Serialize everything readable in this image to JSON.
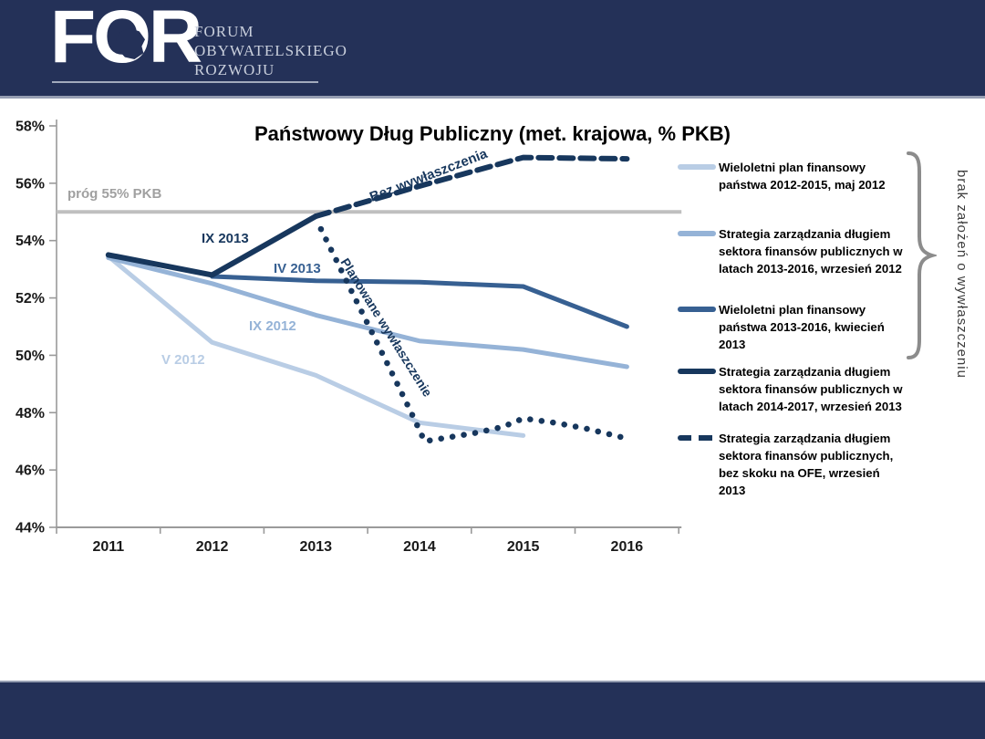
{
  "header": {
    "logo_text": "FOR",
    "org_lines": [
      "FORUM",
      "OBYWATELSKIEGO",
      "ROZWOJU"
    ],
    "brand_navy": "#243158"
  },
  "chart_data": {
    "type": "line",
    "title": "Państwowy Dług Publiczny (met. krajowa, % PKB)",
    "xlabel": "",
    "ylabel": "",
    "y_unit": "%",
    "ylim": [
      44,
      58
    ],
    "ytick_step": 2,
    "grid": false,
    "legend_position": "right",
    "x_categories": [
      2011,
      2012,
      2013,
      2014,
      2015,
      2016
    ],
    "threshold": {
      "value": 55,
      "label": "próg 55% PKB",
      "color": "#BFBFBF"
    },
    "series": [
      {
        "inline_label": "V 2012",
        "legend": "Wieloletni plan finansowy państwa 2012-2015, maj 2012",
        "color": "#B9CDE5",
        "style": "solid",
        "width": 5,
        "x": [
          2011,
          2012,
          2013,
          2014,
          2015
        ],
        "y": [
          53.45,
          50.45,
          49.3,
          47.65,
          47.2
        ]
      },
      {
        "inline_label": "IX 2012",
        "legend": "Strategia zarządzania długiem sektora finansów publicznych w latach 2013-2016, wrzesień 2012",
        "color": "#95B3D7",
        "style": "solid",
        "width": 5,
        "x": [
          2011,
          2012,
          2013,
          2014,
          2015,
          2016
        ],
        "y": [
          53.4,
          52.5,
          51.4,
          50.5,
          50.2,
          49.6
        ]
      },
      {
        "inline_label": "IV 2013",
        "legend": "Wieloletni plan finansowy państwa 2013-2016, kwiecień 2013",
        "color": "#376092",
        "style": "solid",
        "width": 5,
        "x": [
          2012,
          2013,
          2014,
          2015,
          2016
        ],
        "y": [
          52.75,
          52.6,
          52.55,
          52.4,
          51.0
        ]
      },
      {
        "inline_label": "IX 2013",
        "legend": "Strategia zarządzania długiem sektora finansów publicznych w latach 2014-2017, wrzesień 2013",
        "color": "#17375D",
        "style": "solid",
        "width": 6,
        "x": [
          2011,
          2012,
          2013
        ],
        "y": [
          53.5,
          52.8,
          54.85
        ]
      },
      {
        "inline_label": "Bez wywłaszczenia",
        "legend": "Strategia zarządzania długiem sektora finansów publicznych, bez skoku na OFE, wrzesień 2013",
        "color": "#17375D",
        "style": "dashed",
        "width": 6,
        "x": [
          2013,
          2014,
          2015,
          2016
        ],
        "y": [
          54.85,
          55.9,
          56.9,
          56.85
        ]
      },
      {
        "inline_label": "Planowane wywłaszczenie",
        "legend": null,
        "color": "#17375D",
        "style": "dotted",
        "width": 6.5,
        "x": [
          2013.05,
          2013.2,
          2013.35,
          2013.5,
          2013.65,
          2013.8,
          2013.92,
          2014.05,
          2014.3,
          2014.55,
          2014.8,
          2015.0,
          2015.3,
          2015.6,
          2016
        ],
        "y": [
          54.4,
          53.3,
          52.2,
          51.1,
          50.0,
          48.9,
          48.0,
          47.0,
          47.15,
          47.3,
          47.5,
          47.8,
          47.65,
          47.45,
          47.1
        ]
      }
    ]
  },
  "annotations": {
    "brace_note": "brak założeń o  wywłaszczeniu"
  }
}
